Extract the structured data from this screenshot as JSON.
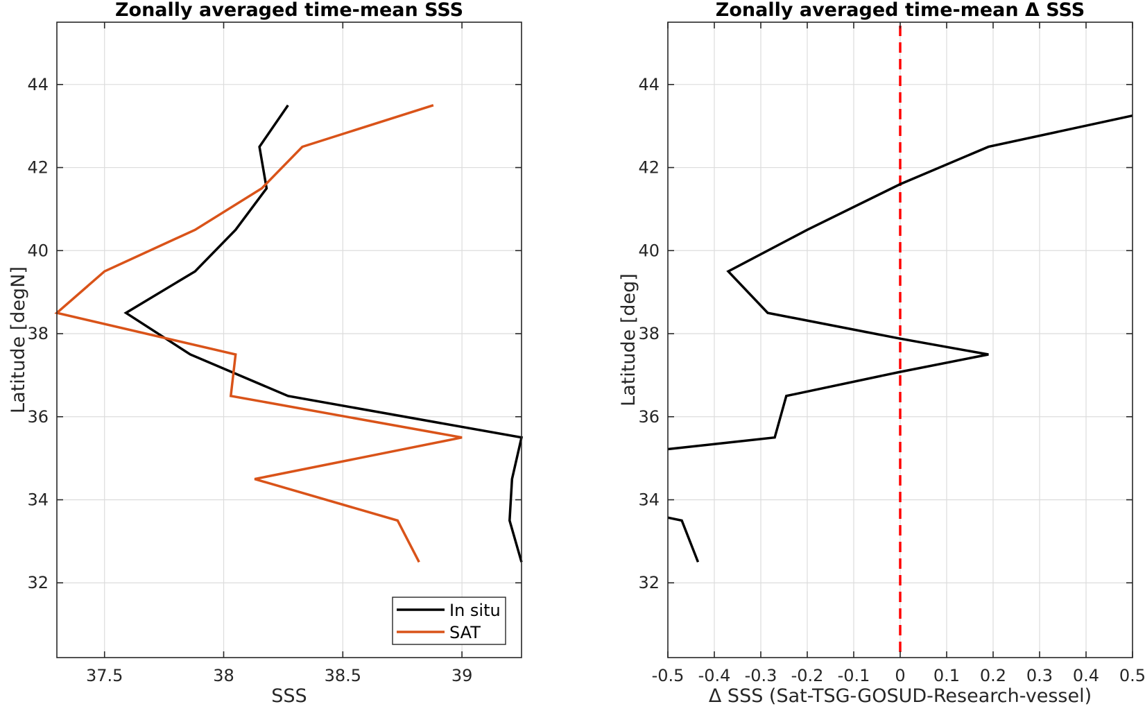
{
  "chart_data": [
    {
      "type": "line",
      "title": "Zonally averaged time-mean SSS",
      "xlabel": "SSS",
      "ylabel": "Latitude [degN]",
      "xlim": [
        37.3,
        39.25
      ],
      "ylim": [
        30.2,
        45.5
      ],
      "xticks": [
        "37.5",
        "38",
        "38.5",
        "39"
      ],
      "xtick_values": [
        37.5,
        38,
        38.5,
        39
      ],
      "yticks": [
        "32",
        "34",
        "36",
        "38",
        "40",
        "42",
        "44"
      ],
      "ytick_values": [
        32,
        34,
        36,
        38,
        40,
        42,
        44
      ],
      "grid": true,
      "legend_position": "bottom-right",
      "series": [
        {
          "name": "In situ",
          "color": "#000000",
          "points": [
            [
              38.27,
              43.5
            ],
            [
              38.15,
              42.5
            ],
            [
              38.18,
              41.5
            ],
            [
              38.05,
              40.5
            ],
            [
              37.88,
              39.5
            ],
            [
              37.59,
              38.5
            ],
            [
              37.86,
              37.5
            ],
            [
              38.27,
              36.5
            ],
            [
              39.25,
              35.5
            ],
            [
              39.21,
              34.5
            ],
            [
              39.2,
              33.5
            ],
            [
              39.25,
              32.5
            ]
          ]
        },
        {
          "name": "SAT",
          "color": "#d95319",
          "points": [
            [
              38.88,
              43.5
            ],
            [
              38.33,
              42.5
            ],
            [
              38.16,
              41.5
            ],
            [
              37.88,
              40.5
            ],
            [
              37.5,
              39.5
            ],
            [
              37.3,
              38.5
            ],
            [
              38.05,
              37.5
            ],
            [
              38.03,
              36.5
            ],
            [
              39.0,
              35.5
            ],
            [
              38.13,
              34.5
            ],
            [
              38.73,
              33.5
            ],
            [
              38.82,
              32.5
            ]
          ]
        }
      ]
    },
    {
      "type": "line",
      "title": "Zonally averaged time-mean Δ SSS",
      "xlabel": "Δ SSS (Sat-TSG-GOSUD-Research-vessel)",
      "ylabel": "Latitude [deg]",
      "xlim": [
        -0.5,
        0.5
      ],
      "ylim": [
        30.2,
        45.5
      ],
      "xticks": [
        "-0.5",
        "-0.4",
        "-0.3",
        "-0.2",
        "-0.1",
        "0",
        "0.1",
        "0.2",
        "0.3",
        "0.4",
        "0.5"
      ],
      "xtick_values": [
        -0.5,
        -0.4,
        -0.3,
        -0.2,
        -0.1,
        0,
        0.1,
        0.2,
        0.3,
        0.4,
        0.5
      ],
      "yticks": [
        "32",
        "34",
        "36",
        "38",
        "40",
        "42",
        "44"
      ],
      "ytick_values": [
        32,
        34,
        36,
        38,
        40,
        42,
        44
      ],
      "grid": true,
      "reference_line": {
        "x": 0,
        "color": "#ff0000",
        "style": "dashed"
      },
      "series": [
        {
          "name": "",
          "color": "#000000",
          "points": [
            [
              0.5,
              43.25
            ],
            [
              0.19,
              42.5
            ],
            [
              0.0,
              41.6
            ],
            [
              -0.2,
              40.5
            ],
            [
              -0.37,
              39.5
            ],
            [
              -0.285,
              38.5
            ],
            [
              0.0,
              37.88
            ],
            [
              0.19,
              37.5
            ],
            [
              0.0,
              37.08
            ],
            [
              -0.245,
              36.5
            ],
            [
              -0.27,
              35.5
            ],
            [
              -0.5,
              35.22
            ]
          ]
        },
        {
          "name": "",
          "color": "#000000",
          "points": [
            [
              -0.5,
              33.57
            ],
            [
              -0.47,
              33.5
            ],
            [
              -0.435,
              32.5
            ]
          ]
        }
      ]
    }
  ]
}
